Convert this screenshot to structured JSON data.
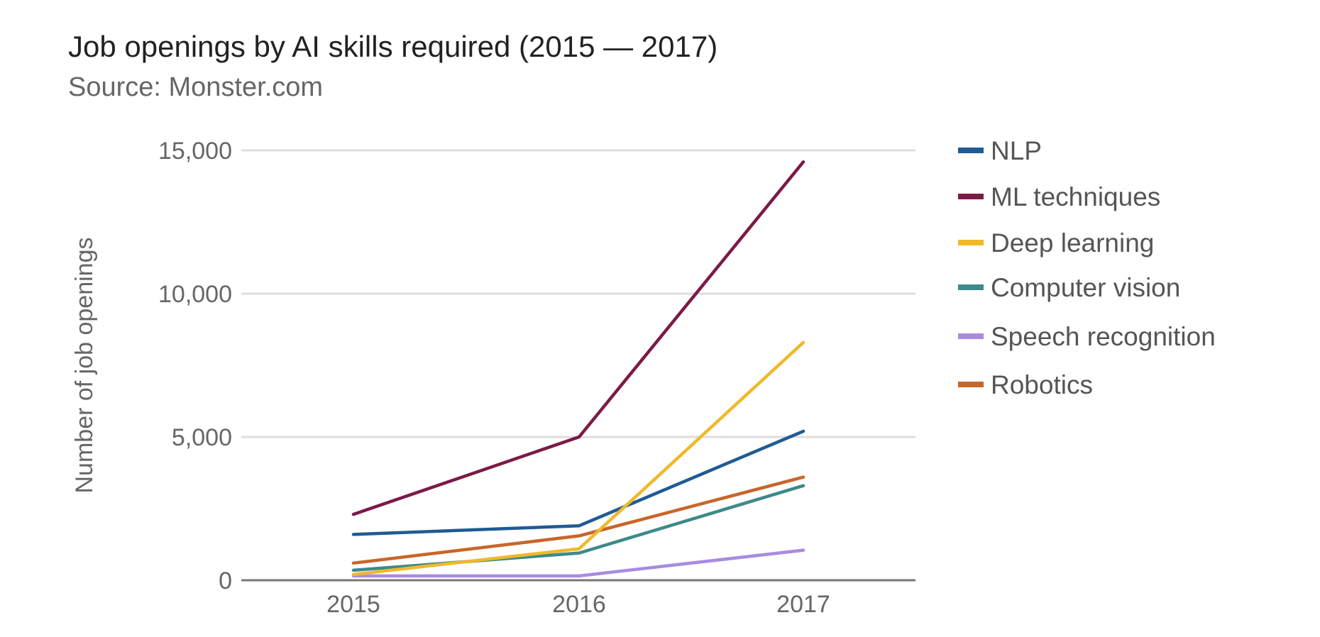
{
  "chart_data": {
    "type": "line",
    "title": "Job openings by AI skills required (2015 — 2017)",
    "subtitle": "Source: Monster.com",
    "xlabel": "",
    "ylabel": "Number of job openings",
    "x": [
      "2015",
      "2016",
      "2017"
    ],
    "y_ticks": [
      "0",
      "5,000",
      "10,000",
      "15,000"
    ],
    "ylim": [
      0,
      15000
    ],
    "grid": true,
    "legend_position": "right",
    "series": [
      {
        "name": "NLP",
        "color": "#1f5b94",
        "values": [
          1600,
          1900,
          5200
        ]
      },
      {
        "name": "ML techniques",
        "color": "#7c1a47",
        "values": [
          2300,
          5000,
          14600
        ]
      },
      {
        "name": "Deep learning",
        "color": "#f0b92a",
        "values": [
          200,
          1100,
          8300
        ]
      },
      {
        "name": "Computer vision",
        "color": "#3d8a8a",
        "values": [
          350,
          950,
          3300
        ]
      },
      {
        "name": "Speech recognition",
        "color": "#a98be0",
        "values": [
          150,
          150,
          1050
        ]
      },
      {
        "name": "Robotics",
        "color": "#c8662a",
        "values": [
          600,
          1550,
          3600
        ]
      }
    ]
  }
}
